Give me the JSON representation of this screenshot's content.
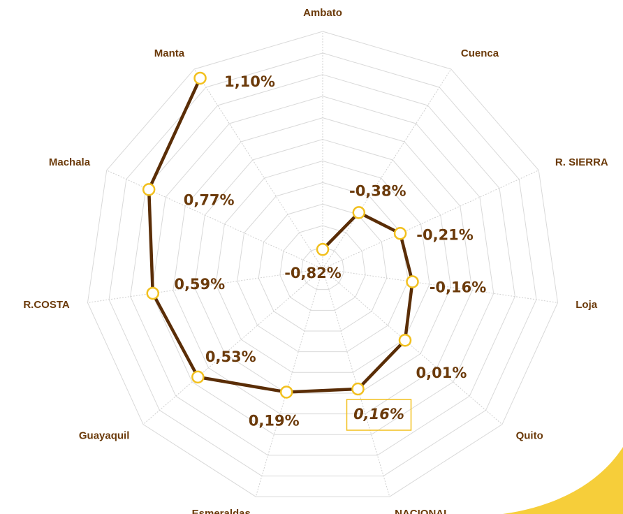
{
  "chart_data": {
    "type": "radar",
    "categories": [
      "Ambato",
      "Cuenca",
      "R. SIERRA",
      "Loja",
      "Quito",
      "NACIONAL",
      "Esmeraldas",
      "Guayaquil",
      "R.COSTA",
      "Machala",
      "Manta"
    ],
    "values": [
      -0.82,
      -0.38,
      -0.21,
      -0.16,
      0.01,
      0.16,
      0.19,
      0.53,
      0.59,
      0.77,
      1.1
    ],
    "value_labels": [
      "-0,82%",
      "-0,38%",
      "-0,21%",
      "-0,16%",
      "0,01%",
      "0,16%",
      "0,19%",
      "0,53%",
      "0,59%",
      "0,77%",
      "1,10%"
    ],
    "color": "#5a2d06",
    "marker_color": "#f2c01e",
    "highlight_index": 5,
    "ylim": [
      -1,
      1.2
    ],
    "yticks": [
      -0.8,
      -0.6,
      -0.4,
      -0.2,
      0,
      0.2,
      0.4,
      0.6,
      0.8,
      1,
      1.2
    ],
    "grid": true
  }
}
